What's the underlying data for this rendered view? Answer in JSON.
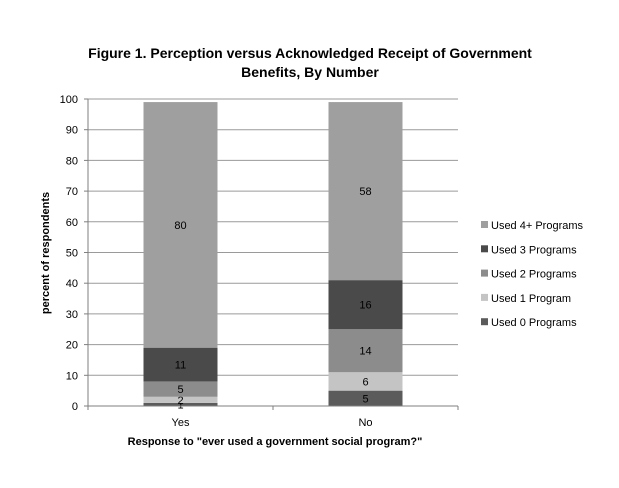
{
  "chart_data": {
    "type": "bar",
    "stacked": true,
    "title_lines": [
      "Figure 1. Perception versus Acknowledged Receipt of Government",
      "Benefits, By Number"
    ],
    "xlabel": "Response to \"ever used a government social program?\"",
    "ylabel": "percent of respondents",
    "ylim": [
      0,
      100
    ],
    "yticks": [
      "0",
      "10",
      "20",
      "30",
      "40",
      "50",
      "60",
      "70",
      "80",
      "90",
      "100"
    ],
    "categories": [
      "Yes",
      "No"
    ],
    "grid": true,
    "legend_position": "right",
    "series": [
      {
        "name": "Used 0 Programs",
        "color": "#5b5b5b",
        "values": [
          1,
          5
        ],
        "labels": [
          "1",
          "5"
        ]
      },
      {
        "name": "Used 1 Program",
        "color": "#c4c4c4",
        "values": [
          2,
          6
        ],
        "labels": [
          "2",
          "6"
        ]
      },
      {
        "name": "Used 2 Programs",
        "color": "#8c8c8c",
        "values": [
          5,
          14
        ],
        "labels": [
          "5",
          "14"
        ]
      },
      {
        "name": "Used 3 Programs",
        "color": "#4a4a4a",
        "values": [
          11,
          16
        ],
        "labels": [
          "11",
          "16"
        ]
      },
      {
        "name": "Used 4+ Programs",
        "color": "#9f9f9f",
        "values": [
          80,
          58
        ],
        "labels": [
          "80",
          "58"
        ]
      }
    ],
    "legend_order": [
      4,
      3,
      2,
      1,
      0
    ]
  }
}
